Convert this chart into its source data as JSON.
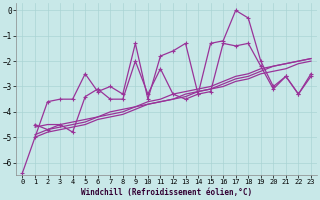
{
  "xlabel": "Windchill (Refroidissement éolien,°C)",
  "background_color": "#c8e8e8",
  "line_color": "#993399",
  "xlim": [
    -0.5,
    23.5
  ],
  "ylim": [
    -6.5,
    0.3
  ],
  "yticks": [
    0,
    -1,
    -2,
    -3,
    -4,
    -5,
    -6
  ],
  "xticks": [
    0,
    1,
    2,
    3,
    4,
    5,
    6,
    7,
    8,
    9,
    10,
    11,
    12,
    13,
    14,
    15,
    16,
    17,
    18,
    19,
    20,
    21,
    22,
    23
  ],
  "series": [
    {
      "x": [
        0,
        1,
        2,
        3,
        4,
        5,
        6,
        7,
        8,
        9,
        10,
        11,
        12,
        13,
        14,
        15,
        16,
        17,
        18,
        19,
        20,
        21,
        22,
        23
      ],
      "y": [
        -6.4,
        -5.0,
        -3.6,
        -3.5,
        -3.5,
        -2.5,
        -3.2,
        -3.0,
        -3.3,
        -1.3,
        -3.5,
        -1.8,
        -1.6,
        -1.3,
        -3.3,
        -1.3,
        -1.2,
        0.0,
        -0.3,
        -2.0,
        -3.0,
        -2.6,
        -3.3,
        -2.5
      ],
      "marker": true,
      "lw": 0.9
    },
    {
      "x": [
        1,
        2,
        3,
        4,
        5,
        6,
        7,
        8,
        9,
        10,
        11,
        12,
        13,
        14,
        15,
        16,
        17,
        18,
        19,
        20,
        21,
        22,
        23
      ],
      "y": [
        -4.5,
        -4.7,
        -4.5,
        -4.8,
        -3.4,
        -3.1,
        -3.5,
        -3.5,
        -2.0,
        -3.3,
        -2.3,
        -3.3,
        -3.5,
        -3.3,
        -3.2,
        -1.3,
        -1.4,
        -1.3,
        -2.2,
        -3.1,
        -2.6,
        -3.3,
        -2.6
      ],
      "marker": true,
      "lw": 0.9
    },
    {
      "x": [
        1,
        2,
        3,
        4,
        5,
        6,
        7,
        8,
        9,
        10,
        11,
        12,
        13,
        14,
        15,
        16,
        17,
        18,
        19,
        20,
        21,
        22,
        23
      ],
      "y": [
        -4.9,
        -4.7,
        -4.6,
        -4.5,
        -4.4,
        -4.2,
        -4.1,
        -4.0,
        -3.8,
        -3.6,
        -3.5,
        -3.3,
        -3.2,
        -3.1,
        -3.0,
        -2.8,
        -2.6,
        -2.5,
        -2.3,
        -2.2,
        -2.1,
        -2.0,
        -1.9
      ],
      "marker": false,
      "lw": 0.9
    },
    {
      "x": [
        1,
        2,
        3,
        4,
        5,
        6,
        7,
        8,
        9,
        10,
        11,
        12,
        13,
        14,
        15,
        16,
        17,
        18,
        19,
        20,
        21,
        22,
        23
      ],
      "y": [
        -4.6,
        -4.5,
        -4.5,
        -4.4,
        -4.3,
        -4.2,
        -4.0,
        -3.9,
        -3.8,
        -3.7,
        -3.6,
        -3.5,
        -3.4,
        -3.2,
        -3.1,
        -3.0,
        -2.8,
        -2.7,
        -2.5,
        -2.4,
        -2.3,
        -2.1,
        -2.0
      ],
      "marker": false,
      "lw": 0.9
    },
    {
      "x": [
        1,
        2,
        3,
        4,
        5,
        6,
        7,
        8,
        9,
        10,
        11,
        12,
        13,
        14,
        15,
        16,
        17,
        18,
        19,
        20,
        21,
        22,
        23
      ],
      "y": [
        -5.0,
        -4.8,
        -4.7,
        -4.6,
        -4.5,
        -4.3,
        -4.2,
        -4.1,
        -3.9,
        -3.7,
        -3.6,
        -3.5,
        -3.3,
        -3.2,
        -3.1,
        -2.9,
        -2.7,
        -2.6,
        -2.4,
        -2.2,
        -2.1,
        -2.0,
        -1.9
      ],
      "marker": false,
      "lw": 0.9
    }
  ]
}
